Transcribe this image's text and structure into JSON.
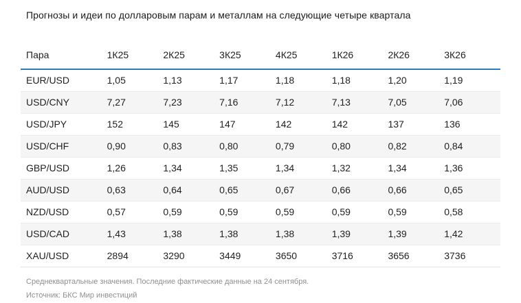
{
  "title": "Прогнозы и идеи по долларовым парам и металлам на следующие четыре квартала",
  "footnote": "Среднеквартальные значения. Последние фактические данные на 24 сентября.",
  "source": "Источник: БКС Мир инвестиций",
  "colors": {
    "header_rule": "#2b7bbe",
    "alt_row": "#f5f5f5",
    "footnote_text": "#8f8f8f"
  },
  "chart_data": {
    "type": "table",
    "title": "Прогнозы и идеи по долларовым парам и металлам на следующие четыре квартала",
    "columns": [
      "Пара",
      "1К25",
      "2К25",
      "3К25",
      "4К25",
      "1К26",
      "2К26",
      "3К26"
    ],
    "rows": [
      [
        "EUR/USD",
        "1,05",
        "1,13",
        "1,17",
        "1,18",
        "1,18",
        "1,20",
        "1,19"
      ],
      [
        "USD/CNY",
        "7,27",
        "7,23",
        "7,16",
        "7,12",
        "7,13",
        "7,05",
        "7,06"
      ],
      [
        "USD/JPY",
        "152",
        "145",
        "147",
        "142",
        "142",
        "137",
        "136"
      ],
      [
        "USD/CHF",
        "0,90",
        "0,83",
        "0,80",
        "0,79",
        "0,80",
        "0,82",
        "0,84"
      ],
      [
        "GBP/USD",
        "1,26",
        "1,34",
        "1,35",
        "1,34",
        "1,32",
        "1,34",
        "1,36"
      ],
      [
        "AUD/USD",
        "0,63",
        "0,64",
        "0,65",
        "0,67",
        "0,66",
        "0,66",
        "0,65"
      ],
      [
        "NZD/USD",
        "0,57",
        "0,59",
        "0,59",
        "0,59",
        "0,59",
        "0,59",
        "0,58"
      ],
      [
        "USD/CAD",
        "1,43",
        "1,38",
        "1,38",
        "1,38",
        "1,39",
        "1,39",
        "1,42"
      ],
      [
        "XAU/USD",
        "2894",
        "3290",
        "3449",
        "3650",
        "3716",
        "3656",
        "3736"
      ]
    ],
    "zebra_striping": "even body rows shaded",
    "legend_position": "none",
    "grid": "horizontal row separators"
  }
}
